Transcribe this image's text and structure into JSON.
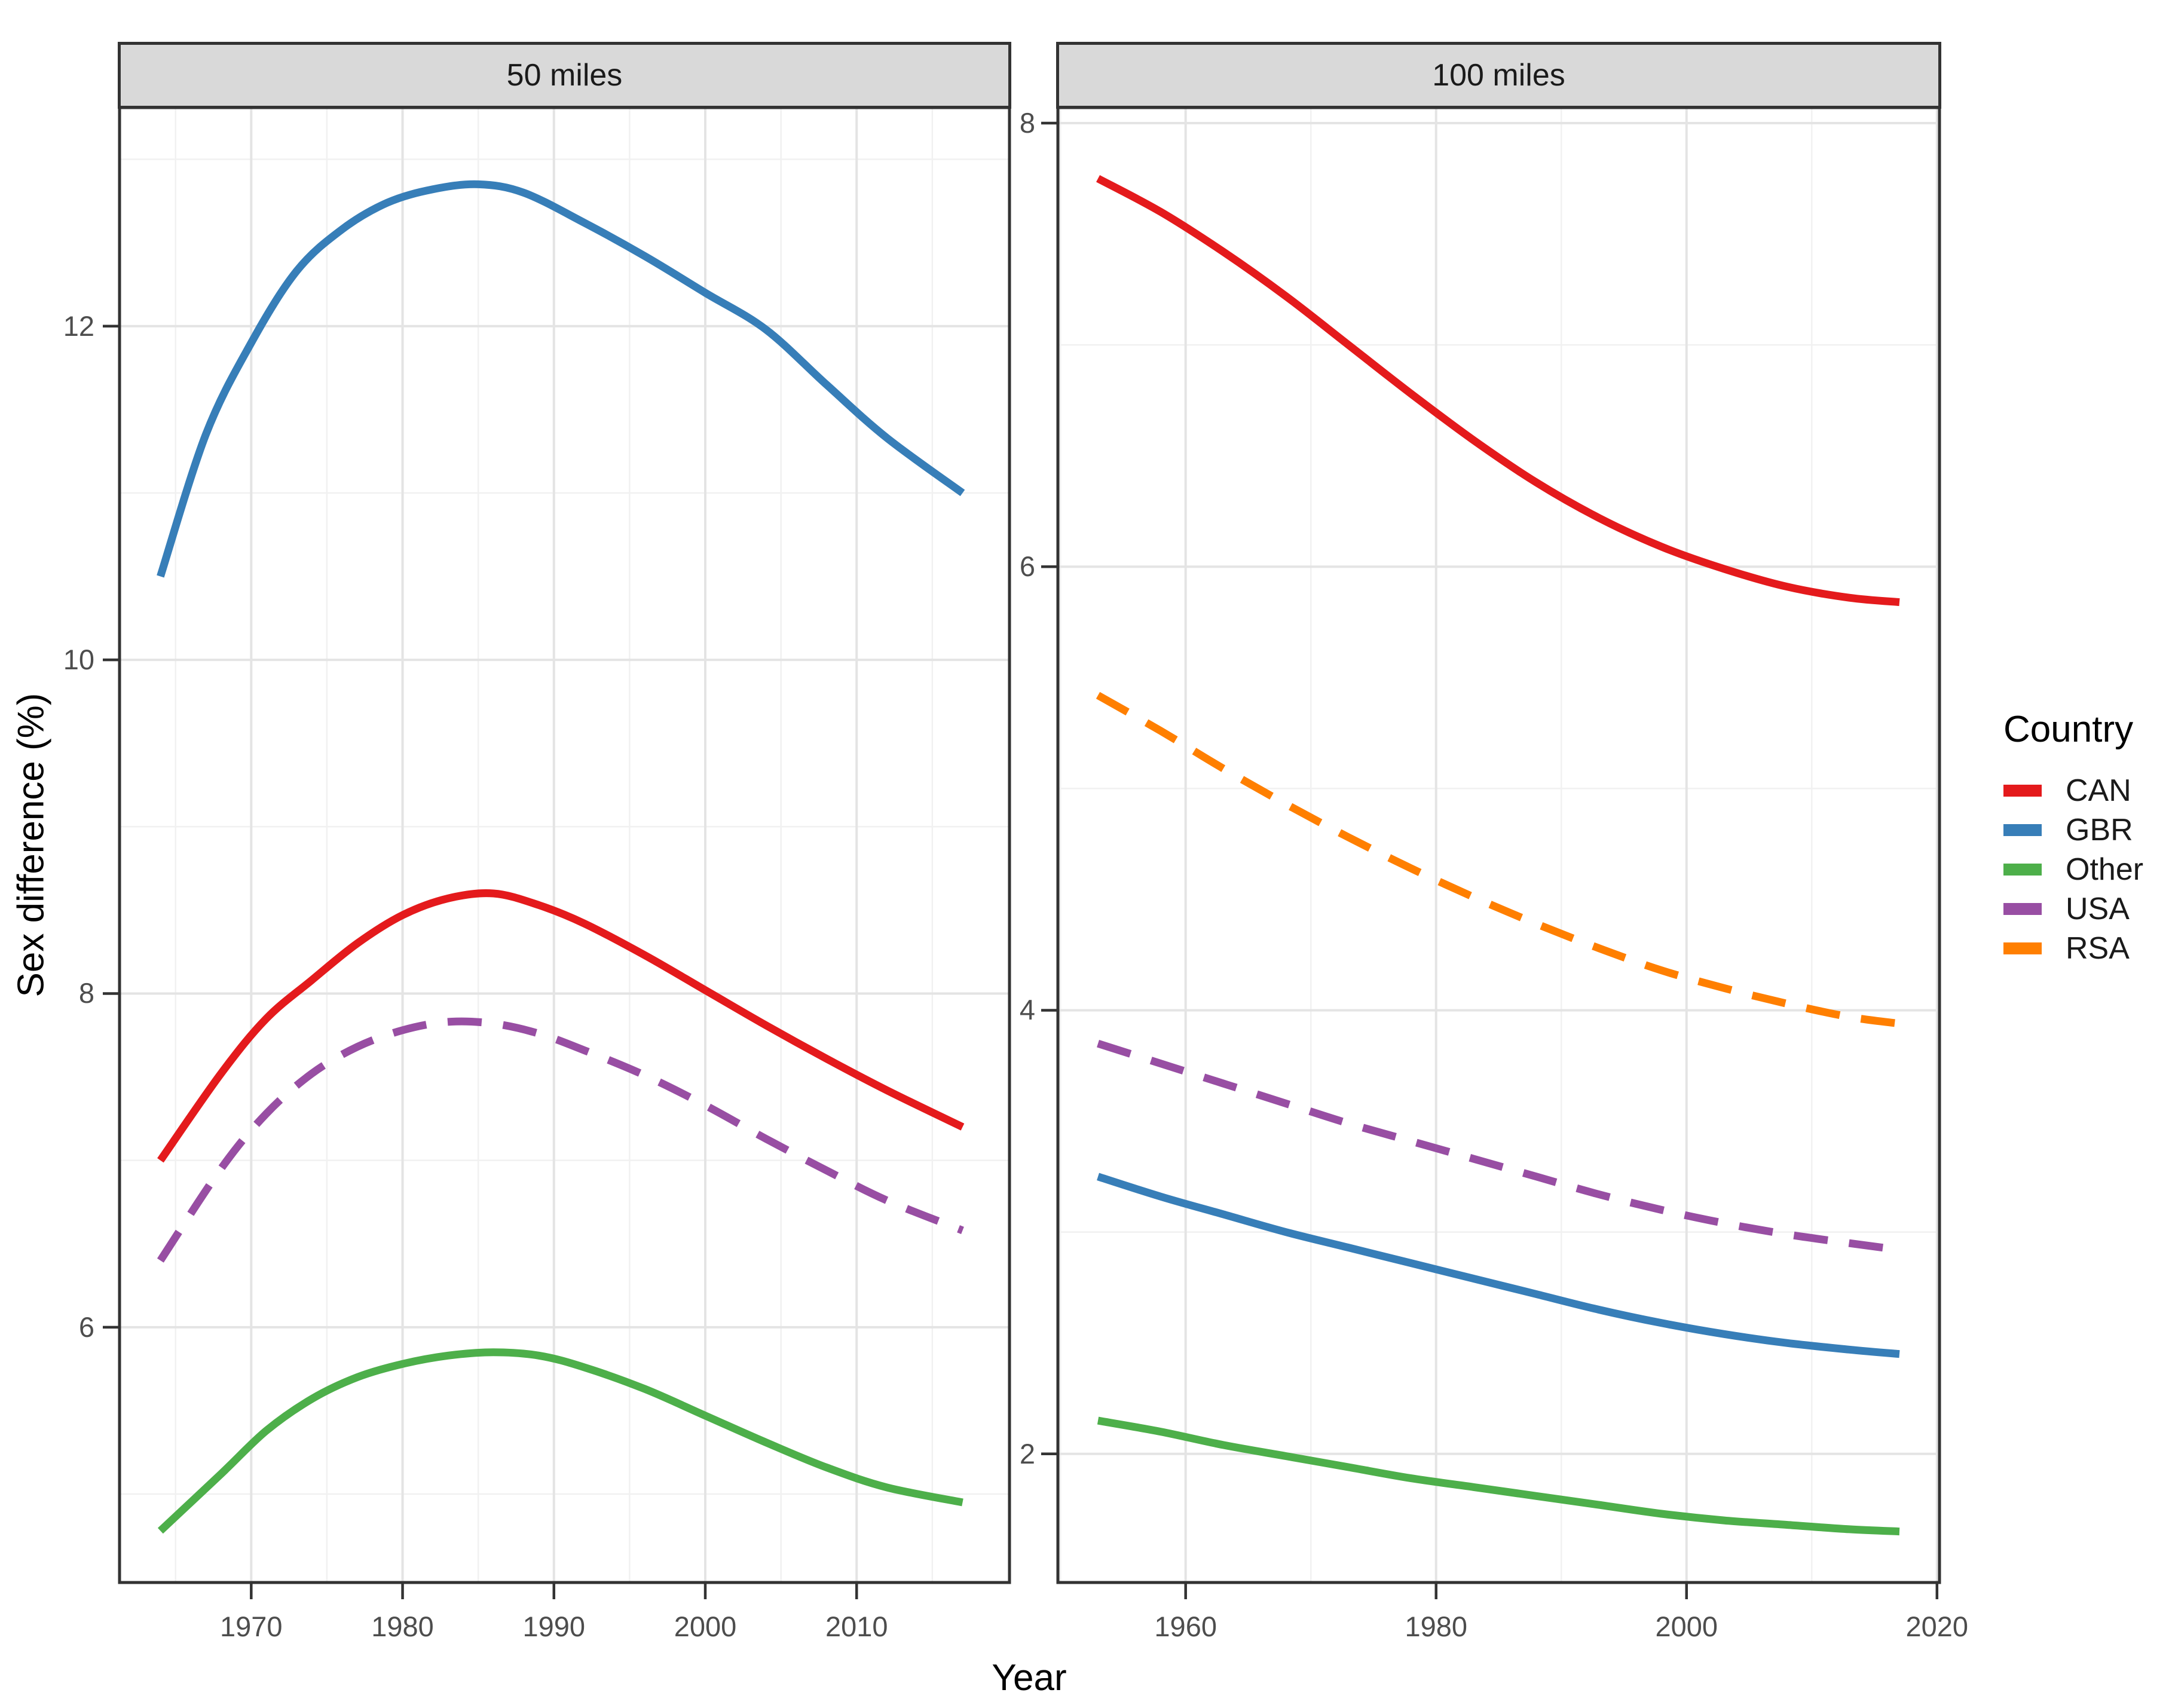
{
  "figure": {
    "background": "#ffffff",
    "panel_background": "#ffffff",
    "panel_border_color": "#333333",
    "strip_background": "#d9d9d9",
    "grid_major_color": "#e4e4e4",
    "grid_minor_color": "#f1f1f1",
    "tick_mark_color": "#333333",
    "tick_label_color": "#4d4d4d",
    "text_color": "#1a1a1a"
  },
  "axes": {
    "x_title": "Year",
    "y_title": "Sex difference (%)"
  },
  "legend": {
    "title": "Country",
    "items": [
      {
        "label": "CAN",
        "color": "#e41a1c",
        "dashed": false
      },
      {
        "label": "GBR",
        "color": "#377eb8",
        "dashed": false
      },
      {
        "label": "Other",
        "color": "#4daf4a",
        "dashed": false
      },
      {
        "label": "USA",
        "color": "#984ea3",
        "dashed": true
      },
      {
        "label": "RSA",
        "color": "#ff7f00",
        "dashed": true
      }
    ]
  },
  "chart_data": [
    {
      "type": "line",
      "panel": "50 miles",
      "xlabel": "Year",
      "ylabel": "Sex difference (%)",
      "x_domain": [
        1961.3,
        2020.1
      ],
      "y_domain": [
        4.47,
        13.31
      ],
      "x_ticks": [
        1970,
        1980,
        1990,
        2000,
        2010
      ],
      "x_minor": [
        1965,
        1975,
        1985,
        1995,
        2005,
        2015
      ],
      "y_ticks": [
        6,
        8,
        10,
        12
      ],
      "y_minor": [
        5,
        7,
        9,
        11,
        13
      ],
      "grid": true,
      "series": [
        {
          "name": "CAN",
          "color": "#e41a1c",
          "dashed": false,
          "x": [
            1964,
            1968,
            1971,
            1974,
            1977,
            1980,
            1983,
            1986,
            1989,
            1992,
            1996,
            2000,
            2004,
            2008,
            2012,
            2017
          ],
          "y": [
            7.0,
            7.52,
            7.85,
            8.08,
            8.3,
            8.47,
            8.57,
            8.6,
            8.53,
            8.42,
            8.23,
            8.02,
            7.81,
            7.61,
            7.42,
            7.2
          ]
        },
        {
          "name": "GBR",
          "color": "#377eb8",
          "dashed": false,
          "x": [
            1964,
            1967,
            1970,
            1973,
            1976,
            1979,
            1982,
            1985,
            1988,
            1992,
            1996,
            2000,
            2004,
            2008,
            2012,
            2017
          ],
          "y": [
            10.5,
            11.35,
            11.9,
            12.33,
            12.58,
            12.74,
            12.82,
            12.85,
            12.8,
            12.62,
            12.42,
            12.2,
            11.98,
            11.65,
            11.33,
            11.0
          ]
        },
        {
          "name": "Other",
          "color": "#4daf4a",
          "dashed": false,
          "x": [
            1964,
            1968,
            1971,
            1974,
            1977,
            1980,
            1983,
            1986,
            1989,
            1992,
            1996,
            2000,
            2004,
            2008,
            2012,
            2017
          ],
          "y": [
            4.78,
            5.12,
            5.38,
            5.57,
            5.7,
            5.78,
            5.83,
            5.85,
            5.83,
            5.76,
            5.63,
            5.47,
            5.31,
            5.16,
            5.04,
            4.95
          ]
        },
        {
          "name": "USA",
          "color": "#984ea3",
          "dashed": true,
          "x": [
            1964,
            1968,
            1971,
            1974,
            1977,
            1980,
            1983,
            1986,
            1989,
            1992,
            1996,
            2000,
            2004,
            2008,
            2012,
            2017
          ],
          "y": [
            6.4,
            6.95,
            7.28,
            7.52,
            7.68,
            7.78,
            7.83,
            7.82,
            7.76,
            7.66,
            7.51,
            7.33,
            7.13,
            6.94,
            6.76,
            6.58
          ]
        }
      ]
    },
    {
      "type": "line",
      "panel": "100 miles",
      "xlabel": "Year",
      "ylabel": "Sex difference (%)",
      "x_domain": [
        1949.8,
        2020.2
      ],
      "y_domain": [
        1.42,
        8.07
      ],
      "x_ticks": [
        1960,
        1980,
        2000,
        2020
      ],
      "x_minor": [
        1950,
        1970,
        1990,
        2010
      ],
      "y_ticks": [
        2,
        4,
        6,
        8
      ],
      "y_minor": [
        3,
        5,
        7
      ],
      "grid": true,
      "series": [
        {
          "name": "CAN",
          "color": "#e41a1c",
          "dashed": false,
          "x": [
            1953,
            1958,
            1963,
            1968,
            1973,
            1978,
            1983,
            1988,
            1993,
            1998,
            2003,
            2008,
            2013,
            2017
          ],
          "y": [
            7.75,
            7.6,
            7.42,
            7.22,
            7.0,
            6.78,
            6.57,
            6.38,
            6.22,
            6.09,
            5.99,
            5.91,
            5.86,
            5.84
          ]
        },
        {
          "name": "RSA",
          "color": "#ff7f00",
          "dashed": true,
          "x": [
            1953,
            1958,
            1963,
            1968,
            1973,
            1978,
            1983,
            1988,
            1993,
            1998,
            2003,
            2008,
            2013,
            2017
          ],
          "y": [
            5.42,
            5.26,
            5.09,
            4.93,
            4.78,
            4.64,
            4.51,
            4.39,
            4.28,
            4.18,
            4.1,
            4.03,
            3.97,
            3.94
          ]
        },
        {
          "name": "USA",
          "color": "#984ea3",
          "dashed": true,
          "x": [
            1953,
            1958,
            1963,
            1968,
            1973,
            1978,
            1983,
            1988,
            1993,
            1998,
            2003,
            2008,
            2013,
            2017
          ],
          "y": [
            3.85,
            3.76,
            3.67,
            3.58,
            3.49,
            3.41,
            3.33,
            3.25,
            3.17,
            3.1,
            3.04,
            2.99,
            2.95,
            2.92
          ]
        },
        {
          "name": "GBR",
          "color": "#377eb8",
          "dashed": false,
          "x": [
            1953,
            1958,
            1963,
            1968,
            1973,
            1978,
            1983,
            1988,
            1993,
            1998,
            2003,
            2008,
            2013,
            2017
          ],
          "y": [
            3.25,
            3.16,
            3.08,
            3.0,
            2.93,
            2.86,
            2.79,
            2.72,
            2.65,
            2.59,
            2.54,
            2.5,
            2.47,
            2.45
          ]
        },
        {
          "name": "Other",
          "color": "#4daf4a",
          "dashed": false,
          "x": [
            1953,
            1958,
            1963,
            1968,
            1973,
            1978,
            1983,
            1988,
            1993,
            1998,
            2003,
            2008,
            2013,
            2017
          ],
          "y": [
            2.15,
            2.1,
            2.04,
            1.99,
            1.94,
            1.89,
            1.85,
            1.81,
            1.77,
            1.73,
            1.7,
            1.68,
            1.66,
            1.65
          ]
        }
      ]
    }
  ]
}
